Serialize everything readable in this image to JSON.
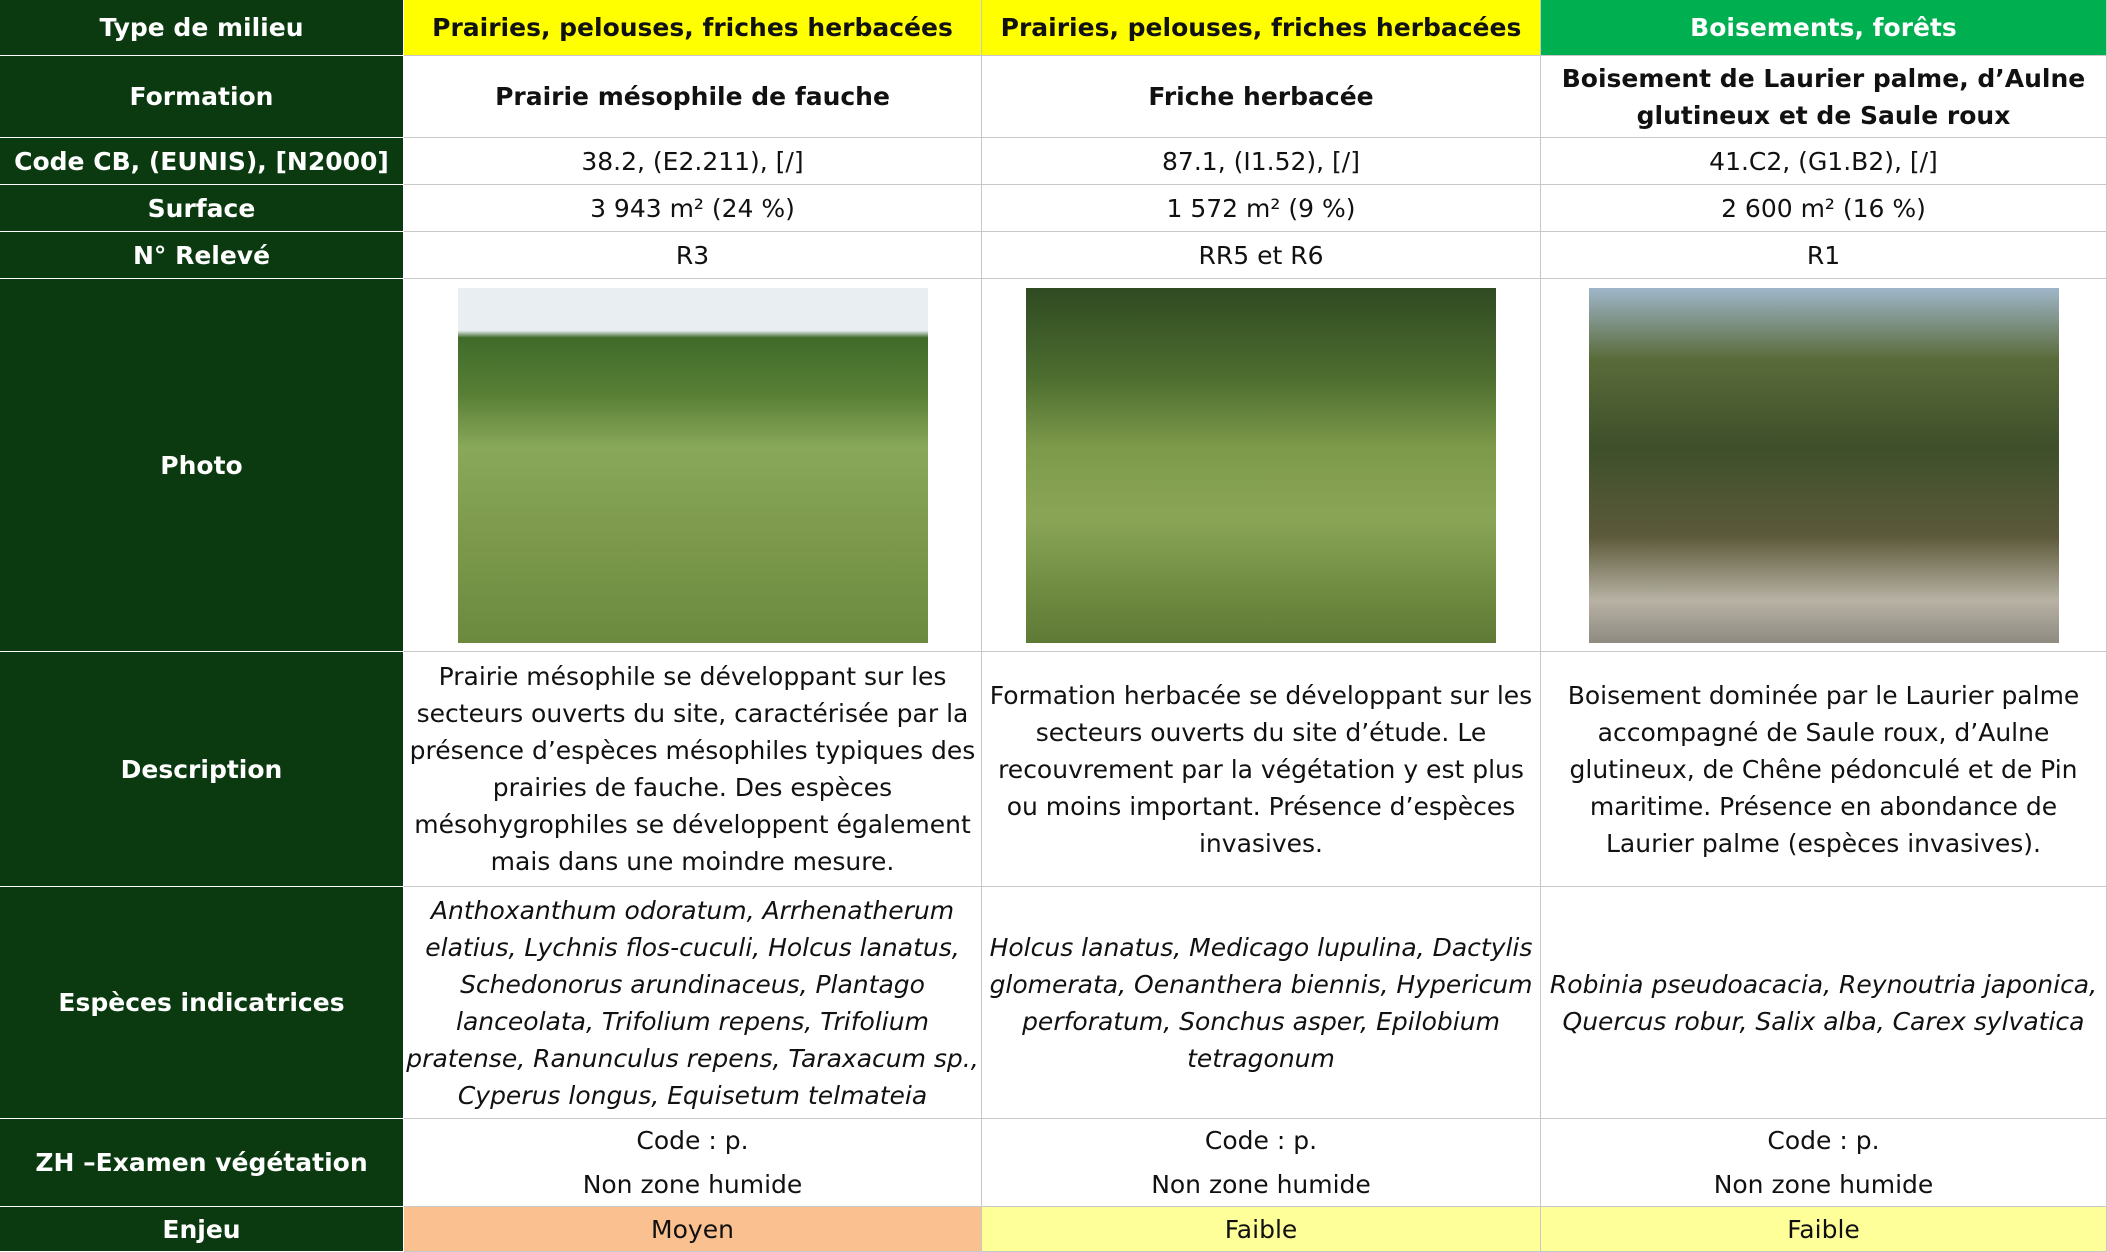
{
  "table": {
    "header": {
      "label": "Type de milieu",
      "cells": [
        "Prairies, pelouses, friches herbacées",
        "Prairies, pelouses, friches herbacées",
        "Boisements, forêts"
      ]
    },
    "rows": [
      {
        "label": "Formation",
        "cells": [
          "Prairie mésophile de fauche",
          "Friche herbacée",
          "Boisement de Laurier palme, d’Aulne glutineux et de Saule roux"
        ]
      },
      {
        "label": "Code CB, (EUNIS), [N2000]",
        "cells": [
          "38.2, (E2.211), [/]",
          "87.1, (I1.52), [/]",
          "41.C2, (G1.B2), [/]"
        ]
      },
      {
        "label": "Surface",
        "cells": [
          "3 943 m² (24 %)",
          "1 572 m² (9 %)",
          "2 600 m² (16 %)"
        ]
      },
      {
        "label": "N° Relevé",
        "cells": [
          "R3",
          "RR5 et R6",
          "R1"
        ]
      },
      {
        "label": "Photo"
      },
      {
        "label": "Description",
        "cells": [
          "Prairie mésophile se développant sur les secteurs ouverts du site, caractérisée par la présence d’espèces mésophiles typiques des prairies de fauche. Des espèces mésohygrophiles se développent également mais dans une moindre mesure.",
          "Formation herbacée se développant sur les secteurs ouverts du site d’étude. Le recouvrement par la végétation y est plus ou moins important. Présence d’espèces invasives.",
          "Boisement dominée par le Laurier palme accompagné de Saule roux, d’Aulne glutineux, de Chêne pédonculé et de Pin maritime. Présence en abondance de Laurier palme (espèces invasives)."
        ]
      },
      {
        "label": "Espèces indicatrices",
        "cells": [
          "Anthoxanthum odoratum, Arrhenatherum elatius, Lychnis flos-cuculi, Holcus lanatus, Schedonorus arundinaceus, Plantago lanceolata, Trifolium repens, Trifolium pratense, Ranunculus repens, Taraxacum sp., Cyperus longus, Equisetum telmateia",
          "Holcus lanatus, Medicago lupulina, Dactylis glomerata, Oenanthera biennis, Hypericum perforatum, Sonchus asper, Epilobium tetragonum",
          "Robinia pseudoacacia, Reynoutria japonica, Quercus robur, Salix alba, Carex sylvatica"
        ]
      },
      {
        "label": "ZH –Examen végétation",
        "cells": [
          [
            "Code : p.",
            "Non zone humide"
          ],
          [
            "Code : p.",
            "Non zone humide"
          ],
          [
            "Code : p.",
            "Non zone humide"
          ]
        ]
      },
      {
        "label": "Enjeu",
        "cells": [
          "Moyen",
          "Faible",
          "Faible"
        ]
      }
    ]
  }
}
